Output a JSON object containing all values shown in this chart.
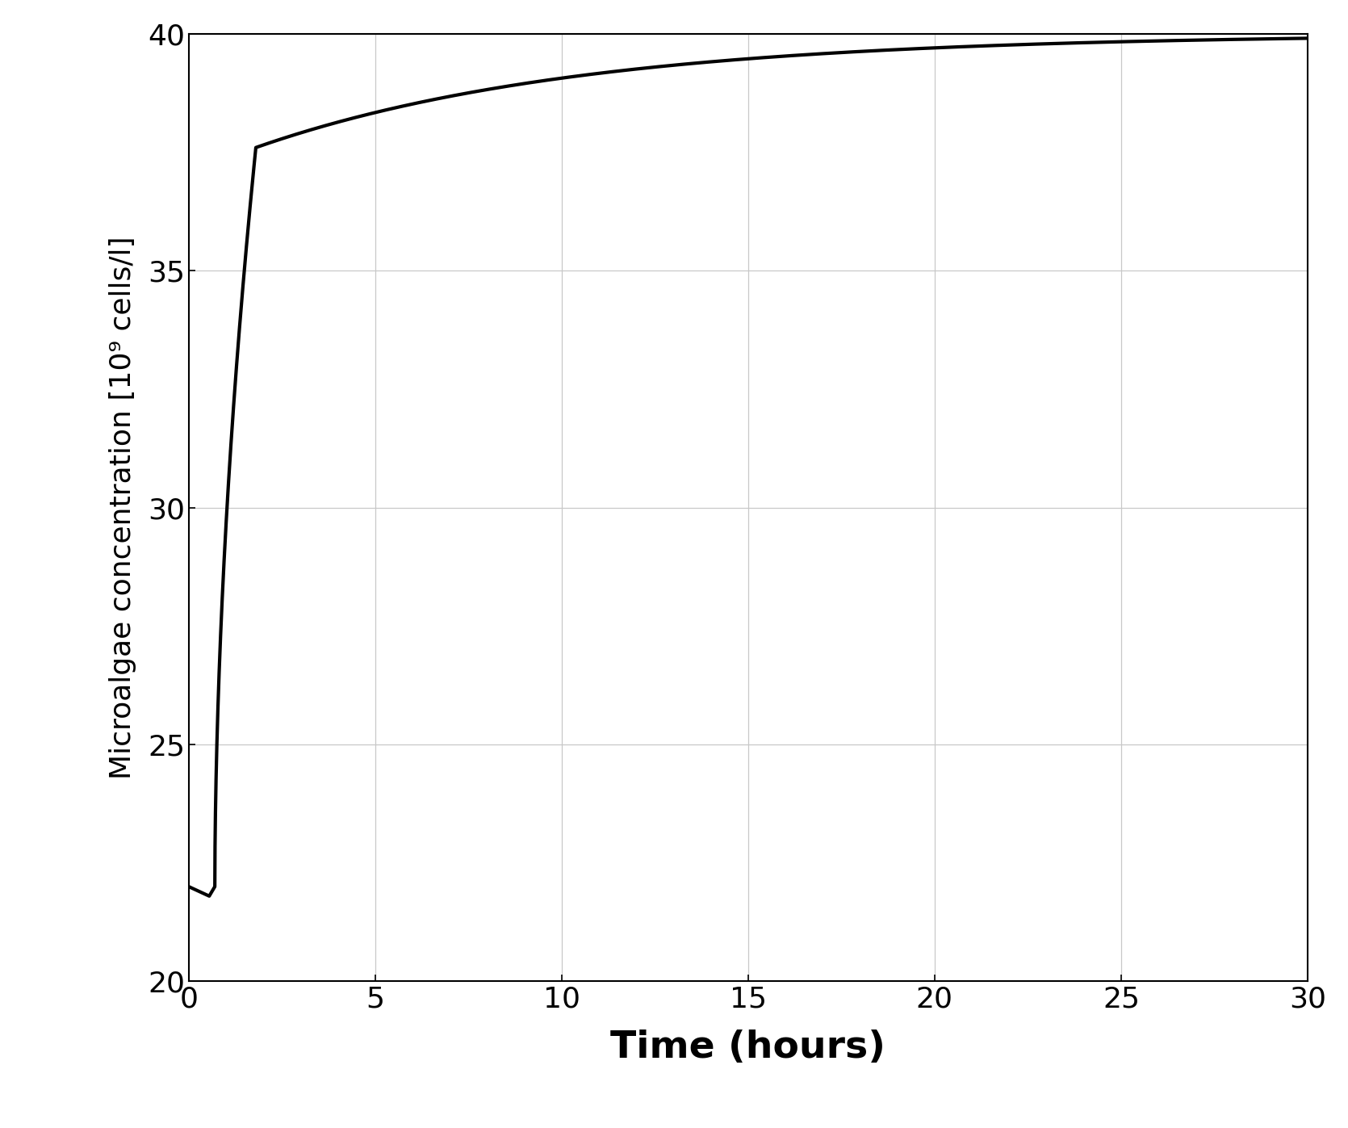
{
  "title": "",
  "xlabel": "Time (hours)",
  "ylabel": "Microalgae concentration [10⁹ cells/l]",
  "xlim": [
    0,
    30
  ],
  "ylim": [
    20,
    40
  ],
  "xticks": [
    0,
    5,
    10,
    15,
    20,
    25,
    30
  ],
  "yticks": [
    20,
    25,
    30,
    35,
    40
  ],
  "line_color": "#000000",
  "line_width": 3.0,
  "background_color": "#ffffff",
  "grid_color": "#c8c8c8",
  "xlabel_fontsize": 34,
  "ylabel_fontsize": 26,
  "tick_fontsize": 26,
  "y0_init": 22.0,
  "y_dip": 21.8,
  "y_after_dip": 22.0,
  "y_peak": 37.6,
  "y_asymptote": 40.0,
  "t_dip": 0.55,
  "t_after_dip": 0.7,
  "t_peak": 1.8,
  "t_end": 30.0,
  "slow_rate": 0.115
}
